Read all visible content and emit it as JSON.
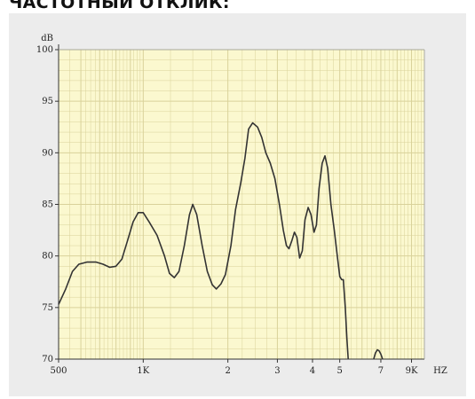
{
  "header": {
    "title": "ЧАСТОТНЫЙ ОТКЛИК:"
  },
  "chart_data": {
    "type": "line",
    "x_scale": "log",
    "xlim": [
      500,
      10000
    ],
    "ylim": [
      70,
      100
    ],
    "y_unit_label": "dB",
    "x_unit_label": "HZ",
    "x_ticks": [
      {
        "value": 500,
        "label": "500"
      },
      {
        "value": 1000,
        "label": "1K"
      },
      {
        "value": 2000,
        "label": "2"
      },
      {
        "value": 3000,
        "label": "3"
      },
      {
        "value": 4000,
        "label": "4"
      },
      {
        "value": 5000,
        "label": "5"
      },
      {
        "value": 7000,
        "label": "7"
      },
      {
        "value": 9000,
        "label": "9K"
      }
    ],
    "y_ticks": [
      {
        "value": 100,
        "label": "100"
      },
      {
        "value": 95,
        "label": "95"
      },
      {
        "value": 90,
        "label": "90"
      },
      {
        "value": 85,
        "label": "85"
      },
      {
        "value": 80,
        "label": "80"
      },
      {
        "value": 75,
        "label": "75"
      },
      {
        "value": 70,
        "label": "70"
      }
    ],
    "grid": true,
    "background_color": "#fbf8cf",
    "grid_color": "#d9d29a",
    "line_color": "#333333",
    "series": [
      {
        "values_xy": [
          [
            500,
            75.3
          ],
          [
            530,
            76.8
          ],
          [
            560,
            78.5
          ],
          [
            590,
            79.2
          ],
          [
            630,
            79.4
          ],
          [
            680,
            79.4
          ],
          [
            720,
            79.2
          ],
          [
            760,
            78.9
          ],
          [
            800,
            79.0
          ],
          [
            840,
            79.7
          ],
          [
            880,
            81.5
          ],
          [
            920,
            83.3
          ],
          [
            960,
            84.2
          ],
          [
            1000,
            84.2
          ],
          [
            1050,
            83.3
          ],
          [
            1120,
            82.0
          ],
          [
            1190,
            80.0
          ],
          [
            1240,
            78.3
          ],
          [
            1290,
            77.9
          ],
          [
            1340,
            78.5
          ],
          [
            1400,
            81.0
          ],
          [
            1460,
            84.0
          ],
          [
            1500,
            85.0
          ],
          [
            1550,
            84.0
          ],
          [
            1620,
            81.0
          ],
          [
            1690,
            78.5
          ],
          [
            1760,
            77.2
          ],
          [
            1820,
            76.8
          ],
          [
            1890,
            77.3
          ],
          [
            1960,
            78.2
          ],
          [
            2050,
            81.0
          ],
          [
            2130,
            84.5
          ],
          [
            2220,
            87.0
          ],
          [
            2300,
            89.5
          ],
          [
            2370,
            92.3
          ],
          [
            2450,
            92.9
          ],
          [
            2550,
            92.5
          ],
          [
            2640,
            91.5
          ],
          [
            2730,
            90.0
          ],
          [
            2830,
            89.0
          ],
          [
            2940,
            87.5
          ],
          [
            3050,
            85.0
          ],
          [
            3150,
            82.5
          ],
          [
            3230,
            81.0
          ],
          [
            3300,
            80.7
          ],
          [
            3380,
            81.5
          ],
          [
            3450,
            82.3
          ],
          [
            3520,
            81.8
          ],
          [
            3600,
            79.8
          ],
          [
            3680,
            80.5
          ],
          [
            3760,
            83.5
          ],
          [
            3860,
            84.7
          ],
          [
            3950,
            84.0
          ],
          [
            4050,
            82.3
          ],
          [
            4130,
            83.0
          ],
          [
            4220,
            86.5
          ],
          [
            4330,
            89.0
          ],
          [
            4430,
            89.7
          ],
          [
            4530,
            88.5
          ],
          [
            4650,
            85.0
          ],
          [
            4780,
            82.5
          ],
          [
            4900,
            80.0
          ],
          [
            5000,
            78.0
          ],
          [
            5080,
            77.7
          ],
          [
            5150,
            77.7
          ],
          [
            5230,
            75.0
          ],
          [
            5300,
            72.0
          ],
          [
            5360,
            70.0
          ]
        ]
      },
      {
        "values_xy": [
          [
            6600,
            70.0
          ],
          [
            6700,
            70.6
          ],
          [
            6800,
            70.9
          ],
          [
            6900,
            70.8
          ],
          [
            7000,
            70.5
          ],
          [
            7100,
            70.0
          ]
        ]
      }
    ]
  }
}
